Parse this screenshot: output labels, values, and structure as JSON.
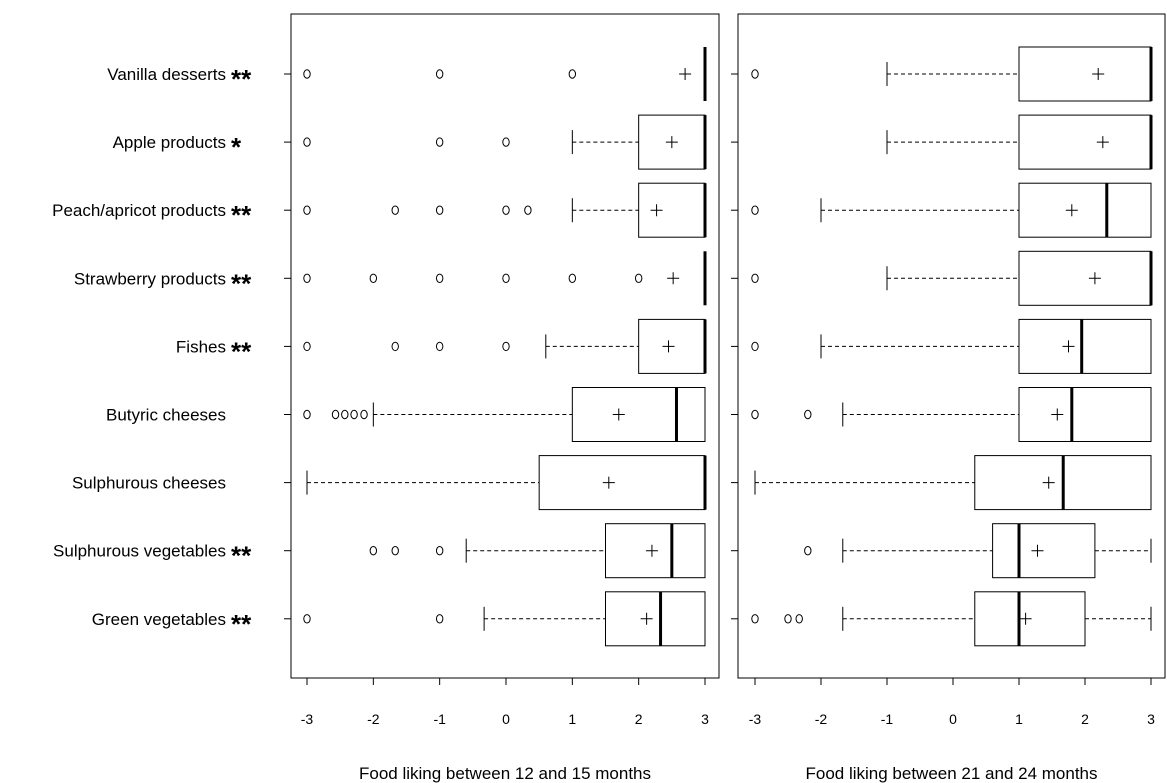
{
  "chart_data": {
    "type": "boxplot",
    "categories": [
      "Vanilla desserts",
      "Apple products",
      "Peach/apricot products",
      "Strawberry products",
      "Fishes",
      "Butyric cheeses",
      "Sulphurous cheeses",
      "Sulphurous vegetables",
      "Green vegetables"
    ],
    "significance": [
      "**",
      "*",
      "**",
      "**",
      "**",
      "",
      "",
      "**",
      "**"
    ],
    "xticks": [
      -3,
      -2,
      -1,
      0,
      1,
      2,
      3
    ],
    "xlim": [
      -3.2,
      3.2
    ],
    "panels": [
      {
        "xlabel": "Food liking between 12 and 15 months",
        "boxes": [
          {
            "q1": 3,
            "median": 3,
            "q3": 3,
            "wlow": 3,
            "whigh": 3,
            "mean": 2.7,
            "outliers": [
              -3,
              -1,
              1
            ]
          },
          {
            "q1": 2,
            "median": 3,
            "q3": 3,
            "wlow": 1,
            "whigh": 3,
            "mean": 2.5,
            "outliers": [
              -3,
              -1,
              0
            ]
          },
          {
            "q1": 2,
            "median": 3,
            "q3": 3,
            "wlow": 1,
            "whigh": 3,
            "mean": 2.27,
            "outliers": [
              -3,
              -1.67,
              -1,
              0,
              0.33
            ]
          },
          {
            "q1": 3,
            "median": 3,
            "q3": 3,
            "wlow": 3,
            "whigh": 3,
            "mean": 2.52,
            "outliers": [
              -3,
              -2,
              -1,
              0,
              1,
              2
            ]
          },
          {
            "q1": 2,
            "median": 3,
            "q3": 3,
            "wlow": 0.6,
            "whigh": 3,
            "mean": 2.45,
            "outliers": [
              -3,
              -1.67,
              -1,
              0
            ]
          },
          {
            "q1": 1,
            "median": 2.57,
            "q3": 3,
            "wlow": -2,
            "whigh": 3,
            "mean": 1.7,
            "outliers": [
              -3,
              -2.57,
              -2.43,
              -2.29,
              -2.14
            ]
          },
          {
            "q1": 0.5,
            "median": 3,
            "q3": 3,
            "wlow": -3,
            "whigh": 3,
            "mean": 1.55,
            "outliers": []
          },
          {
            "q1": 1.5,
            "median": 2.5,
            "q3": 3,
            "wlow": -0.6,
            "whigh": 3,
            "mean": 2.2,
            "outliers": [
              -2,
              -1.67,
              -1
            ]
          },
          {
            "q1": 1.5,
            "median": 2.33,
            "q3": 3,
            "wlow": -0.33,
            "whigh": 3,
            "mean": 2.12,
            "outliers": [
              -3,
              -1
            ]
          }
        ]
      },
      {
        "xlabel": "Food liking between 21 and 24 months",
        "boxes": [
          {
            "q1": 1,
            "median": 3,
            "q3": 3,
            "wlow": -1,
            "whigh": 3,
            "mean": 2.2,
            "outliers": [
              -3
            ]
          },
          {
            "q1": 1,
            "median": 3,
            "q3": 3,
            "wlow": -1,
            "whigh": 3,
            "mean": 2.27,
            "outliers": []
          },
          {
            "q1": 1,
            "median": 2.33,
            "q3": 3,
            "wlow": -2,
            "whigh": 3,
            "mean": 1.8,
            "outliers": [
              -3
            ]
          },
          {
            "q1": 1,
            "median": 3,
            "q3": 3,
            "wlow": -1,
            "whigh": 3,
            "mean": 2.15,
            "outliers": [
              -3
            ]
          },
          {
            "q1": 1,
            "median": 1.95,
            "q3": 3,
            "wlow": -2,
            "whigh": 3,
            "mean": 1.75,
            "outliers": [
              -3
            ]
          },
          {
            "q1": 1,
            "median": 1.8,
            "q3": 3,
            "wlow": -1.67,
            "whigh": 3,
            "mean": 1.58,
            "outliers": [
              -3,
              -2.2
            ]
          },
          {
            "q1": 0.33,
            "median": 1.67,
            "q3": 3,
            "wlow": -3,
            "whigh": 3,
            "mean": 1.45,
            "outliers": []
          },
          {
            "q1": 0.6,
            "median": 1,
            "q3": 2.15,
            "wlow": -1.67,
            "whigh": 3,
            "mean": 1.28,
            "outliers": [
              -2.2
            ]
          },
          {
            "q1": 0.33,
            "median": 1,
            "q3": 2,
            "wlow": -1.67,
            "whigh": 3,
            "mean": 1.1,
            "outliers": [
              -3,
              -2.5,
              -2.33
            ]
          }
        ]
      }
    ]
  }
}
